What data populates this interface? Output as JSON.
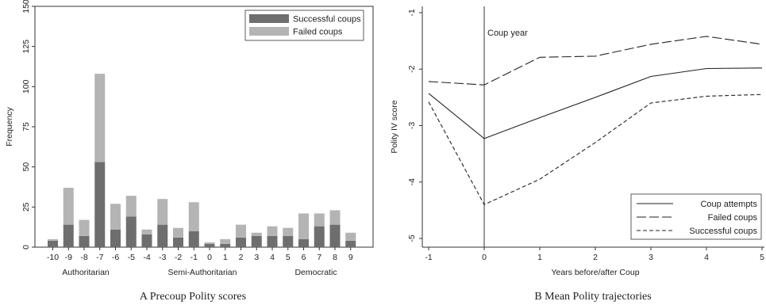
{
  "chart_data": [
    {
      "type": "bar",
      "caption": "A Precoup Polity scores",
      "ylabel": "Frequency",
      "ylim": [
        0,
        150
      ],
      "yticks": [
        0,
        25,
        50,
        75,
        100,
        125,
        150
      ],
      "categories": [
        "-10",
        "-9",
        "-8",
        "-7",
        "-6",
        "-5",
        "-4",
        "-3",
        "-2",
        "-1",
        "0",
        "1",
        "2",
        "3",
        "4",
        "5",
        "6",
        "7",
        "8",
        "9"
      ],
      "stacked": true,
      "series": [
        {
          "name": "Successful coups",
          "color": "#6e6e6e",
          "values": [
            4,
            14,
            7,
            53,
            11,
            19,
            8,
            14,
            6,
            10,
            2,
            2,
            6,
            7,
            7,
            7,
            5,
            13,
            14,
            4
          ]
        },
        {
          "name": "Failed coups",
          "color": "#b4b4b4",
          "values": [
            1,
            23,
            10,
            55,
            16,
            13,
            3,
            16,
            6,
            18,
            1,
            3,
            8,
            2,
            6,
            5,
            16,
            8,
            9,
            5
          ]
        }
      ],
      "group_labels": [
        "Authoritarian",
        "Semi-Authoritarian",
        "Democratic"
      ],
      "legend_position": "top-right"
    },
    {
      "type": "line",
      "caption": "B Mean Polity trajectories",
      "xlabel": "Years before/after Coup",
      "ylabel": "Polity IV score",
      "xlim": [
        -1,
        5
      ],
      "ylim": [
        -5,
        -1
      ],
      "xticks": [
        -1,
        0,
        1,
        2,
        3,
        4,
        5
      ],
      "yticks": [
        -5,
        -4,
        -3,
        -2,
        -1
      ],
      "x": [
        -1,
        0,
        1,
        2,
        3,
        4,
        5
      ],
      "annotation": "Coup year",
      "series": [
        {
          "name": "Coup attempts",
          "dash": "solid",
          "values": [
            -2.43,
            -3.23,
            -2.86,
            -2.5,
            -2.13,
            -1.99,
            -1.98
          ]
        },
        {
          "name": "Failed coups",
          "dash": "longdash",
          "values": [
            -2.22,
            -2.28,
            -1.79,
            -1.77,
            -1.56,
            -1.42,
            -1.56
          ]
        },
        {
          "name": "Successful coups",
          "dash": "shortdash",
          "values": [
            -2.58,
            -4.4,
            -3.95,
            -3.3,
            -2.6,
            -2.48,
            -2.45
          ]
        }
      ],
      "legend_position": "bottom-right"
    }
  ]
}
